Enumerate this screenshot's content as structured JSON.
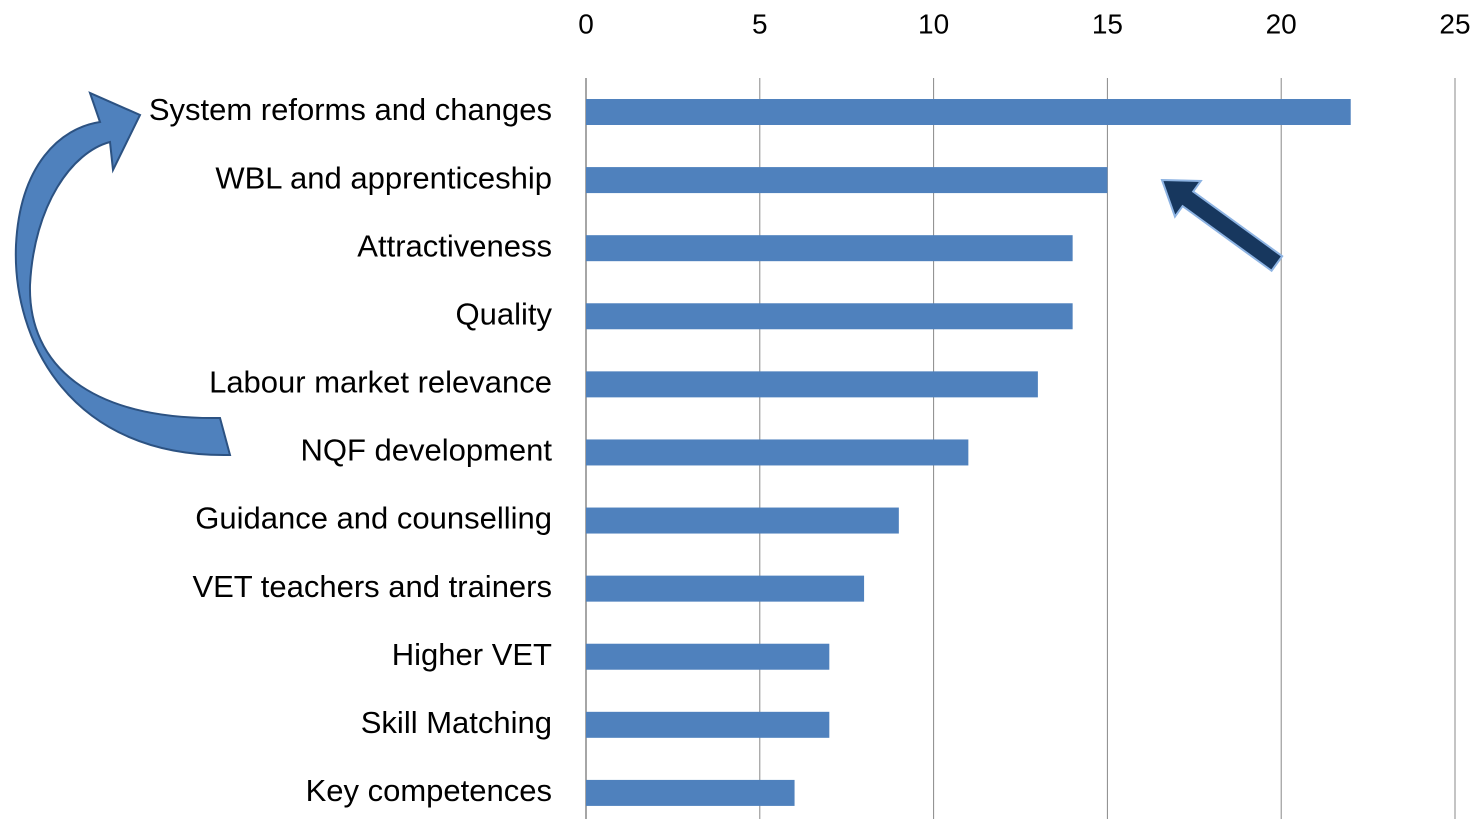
{
  "chart_data": {
    "type": "bar",
    "horizontal": true,
    "categories": [
      "System reforms and changes",
      "WBL and apprenticeship",
      "Attractiveness",
      "Quality",
      "Labour market relevance",
      "NQF development",
      "Guidance and counselling",
      "VET teachers and trainers",
      "Higher VET",
      "Skill Matching",
      "Key competences"
    ],
    "values": [
      22,
      15,
      14,
      14,
      13,
      11,
      9,
      8,
      7,
      7,
      6
    ],
    "color": "#4f81bd",
    "xlim": [
      0,
      25
    ],
    "xticks": [
      0,
      5,
      10,
      15,
      20,
      25
    ],
    "grid": true
  }
}
